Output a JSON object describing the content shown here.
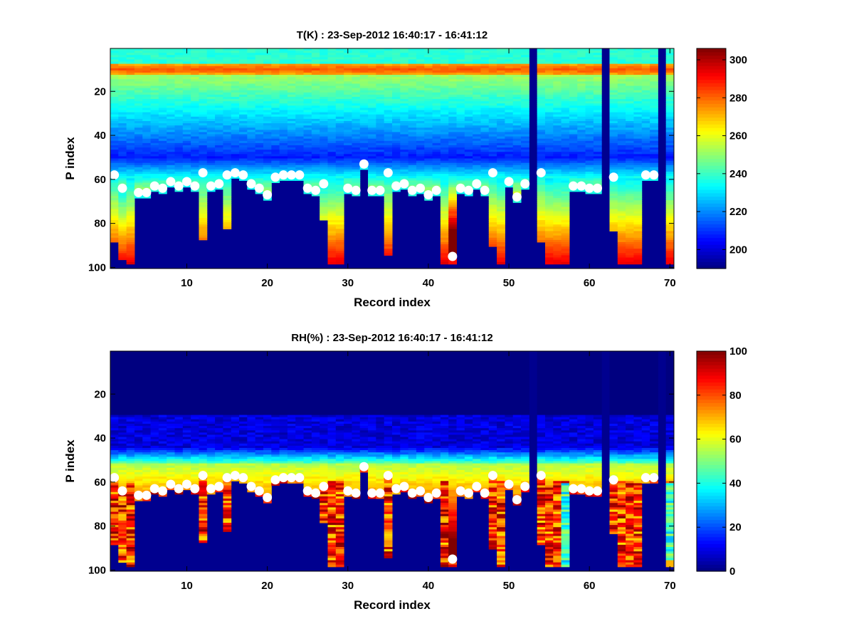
{
  "chart_data": [
    {
      "type": "heatmap",
      "title": "T(K) : 23-Sep-2012 16:40:17 - 16:41:12",
      "xlabel": "Record index",
      "ylabel": "P index",
      "xlim": [
        0.5,
        70.5
      ],
      "ylim": [
        1,
        100
      ],
      "y_reversed": true,
      "xticks": [
        10,
        20,
        30,
        40,
        50,
        60,
        70
      ],
      "yticks": [
        20,
        40,
        60,
        80,
        100
      ],
      "colormap": "jet",
      "clim": [
        190,
        306
      ],
      "colorbar_ticks": [
        200,
        220,
        240,
        260,
        280,
        300
      ],
      "background_value": "below-min (dark blue)",
      "profile_shape": "warm band near P=10 (~275K), cold minimum near P=45-55 (~205K), warming to ~290-300K at bottom",
      "missing_columns": [
        53,
        62,
        69
      ],
      "marker_series": {
        "name": "level markers (white dots)",
        "x": [
          1,
          2,
          4,
          5,
          6,
          7,
          8,
          9,
          10,
          11,
          12,
          13,
          14,
          15,
          16,
          17,
          18,
          19,
          20,
          21,
          22,
          23,
          24,
          25,
          26,
          27,
          30,
          31,
          32,
          33,
          34,
          35,
          36,
          37,
          38,
          39,
          40,
          41,
          43,
          44,
          45,
          46,
          47,
          48,
          50,
          51,
          52,
          54,
          58,
          59,
          60,
          61,
          63,
          67,
          68
        ],
        "y": [
          58,
          64,
          66,
          66,
          63,
          64,
          61,
          63,
          61,
          63,
          57,
          63,
          62,
          58,
          57,
          58,
          62,
          64,
          67,
          59,
          58,
          58,
          58,
          64,
          65,
          62,
          64,
          65,
          53,
          65,
          65,
          57,
          63,
          62,
          65,
          64,
          67,
          65,
          95,
          64,
          65,
          62,
          65,
          57,
          61,
          68,
          62,
          57,
          63,
          63,
          64,
          64,
          59,
          58,
          58
        ]
      },
      "column_data_bottom": {
        "x": [
          1,
          2,
          3,
          12,
          15,
          27,
          28,
          29,
          35,
          42,
          43,
          48,
          49,
          54,
          55,
          56,
          57,
          63,
          64,
          65,
          66,
          70
        ],
        "last_p_index": [
          88,
          96,
          98,
          87,
          82,
          78,
          98,
          98,
          94,
          98,
          98,
          90,
          98,
          88,
          98,
          98,
          98,
          83,
          98,
          98,
          98,
          98
        ]
      }
    },
    {
      "type": "heatmap",
      "title": "RH(%) : 23-Sep-2012 16:40:17 - 16:41:12",
      "xlabel": "Record index",
      "ylabel": "P index",
      "xlim": [
        0.5,
        70.5
      ],
      "ylim": [
        1,
        100
      ],
      "y_reversed": true,
      "xticks": [
        10,
        20,
        30,
        40,
        50,
        60,
        70
      ],
      "yticks": [
        20,
        40,
        60,
        80,
        100
      ],
      "colormap": "jet",
      "clim": [
        0,
        100
      ],
      "colorbar_ticks": [
        0,
        20,
        40,
        60,
        80,
        100
      ],
      "profile_shape": "~0% above P=35, moist band (50-65%) near P=52-62, 70-100% below where data present",
      "missing_columns": [
        53,
        62,
        69
      ],
      "marker_series": {
        "name": "level markers (white dots)",
        "x": [
          1,
          2,
          4,
          5,
          6,
          7,
          8,
          9,
          10,
          11,
          12,
          13,
          14,
          15,
          16,
          17,
          18,
          19,
          20,
          21,
          22,
          23,
          24,
          25,
          26,
          27,
          30,
          31,
          32,
          33,
          34,
          35,
          36,
          37,
          38,
          39,
          40,
          41,
          43,
          44,
          45,
          46,
          47,
          48,
          50,
          51,
          52,
          54,
          58,
          59,
          60,
          61,
          63,
          67,
          68
        ],
        "y": [
          58,
          64,
          66,
          66,
          63,
          64,
          61,
          63,
          61,
          63,
          57,
          63,
          62,
          58,
          57,
          58,
          62,
          64,
          67,
          59,
          58,
          58,
          58,
          64,
          65,
          62,
          64,
          65,
          53,
          65,
          65,
          57,
          63,
          62,
          65,
          64,
          67,
          65,
          95,
          64,
          65,
          62,
          65,
          57,
          61,
          68,
          62,
          57,
          63,
          63,
          64,
          64,
          59,
          58,
          58
        ]
      }
    }
  ]
}
